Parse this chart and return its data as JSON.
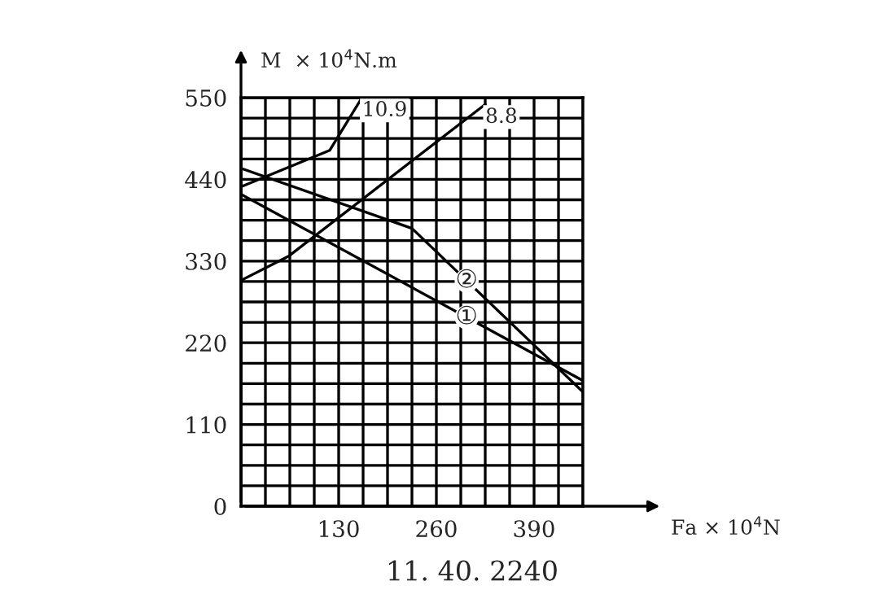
{
  "chart_data": {
    "type": "line",
    "xlabel": "Fa × 10$^{4}$N",
    "ylabel": "M  × 10$^{4}$N.m",
    "annotations": [
      "11. 40. 2240"
    ],
    "series": [
      {
        "name": "10.9",
        "color": "#000000",
        "x": [
          0,
          118,
          161
        ],
        "values": [
          430,
          479,
          550
        ]
      },
      {
        "name": "8.8",
        "color": "#000000",
        "x": [
          0,
          64,
          325
        ],
        "values": [
          304,
          337,
          541
        ]
      },
      {
        "name": "②",
        "color": "#000000",
        "x": [
          0,
          227.5,
          455
        ],
        "values": [
          455,
          374,
          154
        ]
      },
      {
        "name": "①",
        "color": "#000000",
        "x": [
          0,
          455
        ],
        "values": [
          420,
          169
        ]
      }
    ],
    "xlim": [
      0,
      455
    ],
    "ylim": [
      0,
      550
    ],
    "xticks": [
      {
        "value": 0,
        "label": null
      },
      {
        "value": 32.5,
        "label": null
      },
      {
        "value": 65,
        "label": null
      },
      {
        "value": 97.5,
        "label": null
      },
      130,
      {
        "value": 162.5,
        "label": null
      },
      {
        "value": 195,
        "label": null
      },
      {
        "value": 227.5,
        "label": null
      },
      260,
      {
        "value": 292.5,
        "label": null
      },
      {
        "value": 325,
        "label": null
      },
      {
        "value": 357.5,
        "label": null
      },
      390,
      {
        "value": 422.5,
        "label": null
      },
      {
        "value": 455,
        "label": null
      }
    ],
    "yticks": [
      0,
      {
        "value": 27.5,
        "label": null
      },
      {
        "value": 55,
        "label": null
      },
      {
        "value": 82.5,
        "label": null
      },
      110,
      {
        "value": 137.5,
        "label": null
      },
      {
        "value": 165,
        "label": null
      },
      {
        "value": 192.5,
        "label": null
      },
      220,
      {
        "value": 247.5,
        "label": null
      },
      {
        "value": 275,
        "label": null
      },
      {
        "value": 302.5,
        "label": null
      },
      330,
      {
        "value": 357.5,
        "label": null
      },
      {
        "value": 385,
        "label": null
      },
      {
        "value": 412.5,
        "label": null
      },
      440,
      {
        "value": 467.5,
        "label": null
      },
      {
        "value": 495,
        "label": null
      },
      {
        "value": 522.5,
        "label": null
      },
      550
    ],
    "grid": true,
    "legend": false,
    "marker": "none",
    "line_style": "solid"
  }
}
